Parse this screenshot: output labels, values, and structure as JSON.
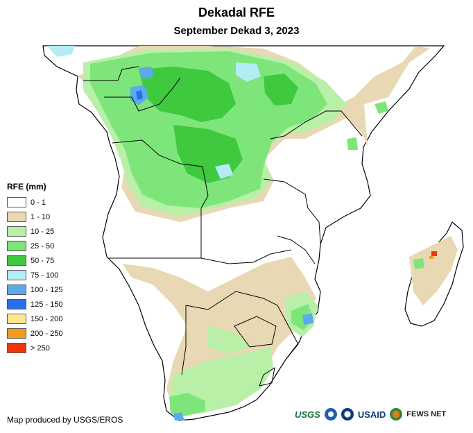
{
  "title": "Dekadal RFE",
  "subtitle": "September Dekad 3, 2023",
  "legend": {
    "title": "RFE (mm)",
    "items": [
      {
        "label": "0 - 1",
        "color": "#ffffff"
      },
      {
        "label": "1 - 10",
        "color": "#e8d9b4"
      },
      {
        "label": "10 - 25",
        "color": "#b8f0a8"
      },
      {
        "label": "25 - 50",
        "color": "#7ee57a"
      },
      {
        "label": "50 - 75",
        "color": "#3ec93e"
      },
      {
        "label": "75 - 100",
        "color": "#b4ecf4"
      },
      {
        "label": "100 - 125",
        "color": "#5aaaf0"
      },
      {
        "label": "125 - 150",
        "color": "#2a6ee8"
      },
      {
        "label": "150 - 200",
        "color": "#fde690"
      },
      {
        "label": "200 - 250",
        "color": "#f59a1c"
      },
      {
        "label": "> 250",
        "color": "#f2360c"
      }
    ]
  },
  "credit": "Map produced by USGS/EROS",
  "logos": {
    "usgs": "USGS",
    "usaid": "USAID",
    "fews": "FEWS NET",
    "noaa": "noaa-seal-icon",
    "usaid_seal": "usaid-seal-icon"
  }
}
